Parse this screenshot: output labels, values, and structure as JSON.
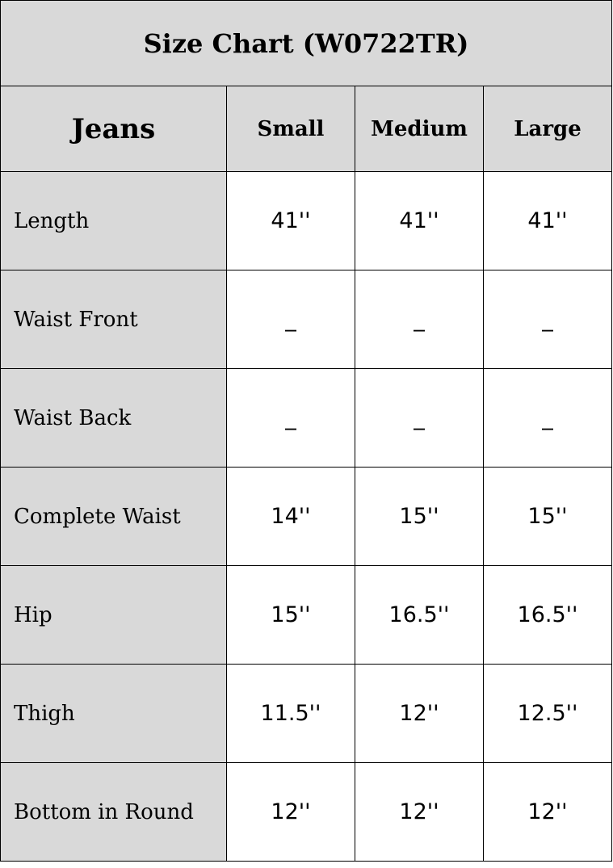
{
  "title": "Size Chart (W0722TR)",
  "headers": [
    "Jeans",
    "Small",
    "Medium",
    "Large"
  ],
  "rows": [
    {
      "label": "Length",
      "values": [
        "41''",
        "41''",
        "41''"
      ]
    },
    {
      "label": "Waist Front",
      "values": [
        "_",
        "_",
        "_"
      ]
    },
    {
      "label": "Waist Back",
      "values": [
        "_",
        "_",
        "_"
      ]
    },
    {
      "label": "Complete Waist",
      "values": [
        "14''",
        "15''",
        "15''"
      ]
    },
    {
      "label": "Hip",
      "values": [
        "15''",
        "16.5''",
        "16.5''"
      ]
    },
    {
      "label": "Thigh",
      "values": [
        "11.5''",
        "12''",
        "12.5''"
      ]
    },
    {
      "label": "Bottom in Round",
      "values": [
        "12''",
        "12''",
        "12''"
      ]
    }
  ],
  "colors": {
    "header_bg": "#d9d9d9",
    "cell_bg": "#ffffff",
    "border": "#000000"
  }
}
